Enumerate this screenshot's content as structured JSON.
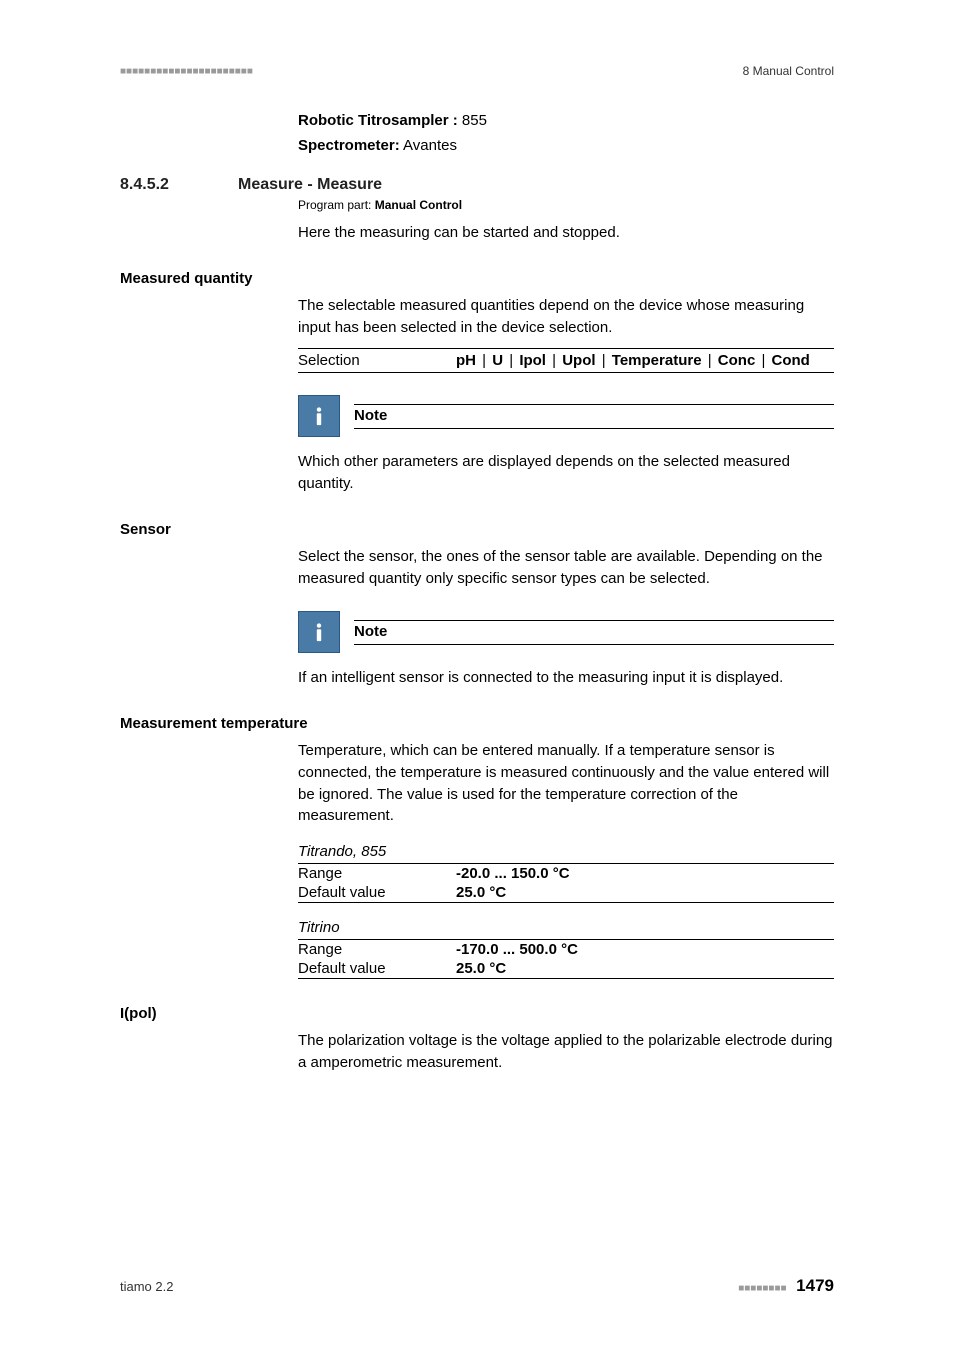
{
  "header": {
    "right": "8 Manual Control"
  },
  "devices": {
    "robotic_label": "Robotic Titrosampler :",
    "robotic_value": "855",
    "spectro_label": "Spectrometer:",
    "spectro_value": "Avantes"
  },
  "section": {
    "number": "8.4.5.2",
    "title": "Measure - Measure",
    "program_part_label": "Program part:",
    "program_part_value": "Manual Control",
    "intro": "Here the measuring can be started and stopped."
  },
  "measured_quantity": {
    "label": "Measured quantity",
    "text": "The selectable measured quantities depend on the device whose measuring input has been selected in the device selection.",
    "selection_label": "Selection",
    "options": [
      "pH",
      "U",
      "Ipol",
      "Upol",
      "Temperature",
      "Conc",
      "Cond"
    ],
    "note_title": "Note",
    "note_body": "Which other parameters are displayed depends on the selected measured quantity."
  },
  "sensor": {
    "label": "Sensor",
    "text": "Select the sensor, the ones of the sensor table are available. Depending on the measured quantity only specific sensor types can be selected.",
    "note_title": "Note",
    "note_body": "If an intelligent sensor is connected to the measuring input it is displayed."
  },
  "measurement_temp": {
    "label": "Measurement temperature",
    "text": "Temperature, which can be entered manually. If a temperature sensor is connected, the temperature is measured continuously and the value entered will be ignored. The value is used for the temperature correction of the measurement.",
    "group1_title": "Titrando, 855",
    "group1": {
      "range_label": "Range",
      "range_value": "-20.0 ... 150.0 °C",
      "default_label": "Default value",
      "default_value": "25.0 °C"
    },
    "group2_title": "Titrino",
    "group2": {
      "range_label": "Range",
      "range_value": "-170.0 ... 500.0 °C",
      "default_label": "Default value",
      "default_value": "25.0 °C"
    }
  },
  "ipol": {
    "label": "I(pol)",
    "text": "The polarization voltage is the voltage applied to the polarizable electrode during a amperometric measurement."
  },
  "footer": {
    "left": "tiamo 2.2",
    "page": "1479"
  },
  "colors": {
    "note_bg": "#4a7ba6",
    "note_border": "#2a5a84",
    "gray": "#9a9a9a"
  }
}
